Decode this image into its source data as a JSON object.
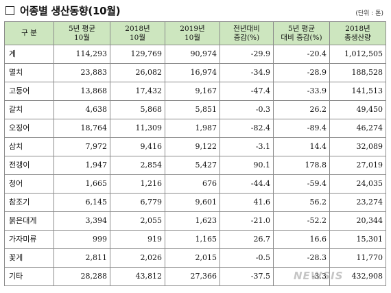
{
  "title": "어종별 생산동향(10월)",
  "unit": "(단위 : 톤)",
  "table": {
    "headers": [
      [
        "구  분"
      ],
      [
        "5년 평균",
        "10월"
      ],
      [
        "2018년",
        "10월"
      ],
      [
        "2019년",
        "10월"
      ],
      [
        "전년대비",
        "증감(%)"
      ],
      [
        "5년 평균",
        "대비 증감(%)"
      ],
      [
        "2018년",
        "총생산량"
      ]
    ],
    "rows": [
      [
        "계",
        "114,293",
        "129,769",
        "90,974",
        "-29.9",
        "-20.4",
        "1,012,505"
      ],
      [
        "멸치",
        "23,883",
        "26,082",
        "16,974",
        "-34.9",
        "-28.9",
        "188,528"
      ],
      [
        "고등어",
        "13,868",
        "17,432",
        "9,167",
        "-47.4",
        "-33.9",
        "141,513"
      ],
      [
        "갈치",
        "4,638",
        "5,868",
        "5,851",
        "-0.3",
        "26.2",
        "49,450"
      ],
      [
        "오징어",
        "18,764",
        "11,309",
        "1,987",
        "-82.4",
        "-89.4",
        "46,274"
      ],
      [
        "삼치",
        "7,972",
        "9,416",
        "9,122",
        "-3.1",
        "14.4",
        "32,089"
      ],
      [
        "전갱이",
        "1,947",
        "2,854",
        "5,427",
        "90.1",
        "178.8",
        "27,019"
      ],
      [
        "청어",
        "1,665",
        "1,216",
        "676",
        "-44.4",
        "-59.4",
        "24,035"
      ],
      [
        "참조기",
        "6,145",
        "6,779",
        "9,601",
        "41.6",
        "56.2",
        "23,274"
      ],
      [
        "붉은대게",
        "3,394",
        "2,055",
        "1,623",
        "-21.0",
        "-52.2",
        "20,344"
      ],
      [
        "가자미류",
        "999",
        "919",
        "1,165",
        "26.7",
        "16.6",
        "15,301"
      ],
      [
        "꽃게",
        "2,811",
        "2,026",
        "2,015",
        "-0.5",
        "-28.3",
        "11,770"
      ],
      [
        "기타",
        "28,288",
        "43,812",
        "27,366",
        "-37.5",
        "-3.3",
        "432,908"
      ]
    ]
  },
  "watermark": "NEWSIS"
}
